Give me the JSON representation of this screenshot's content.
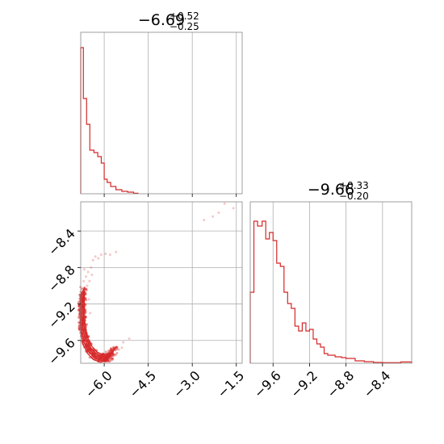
{
  "chart_data": [
    {
      "type": "histogram",
      "panel": "top-left",
      "title": {
        "median": "−6.69",
        "plus": "+0.52",
        "minus": "−0.25"
      },
      "xlim": [
        -6.8,
        -1.3
      ],
      "ylim": [
        0,
        1
      ],
      "xticks": [
        -6.0,
        -4.5,
        -3.0,
        -1.5
      ],
      "show_xtick_labels": false,
      "show_yticks": false,
      "grid": true,
      "color": "#d62728",
      "bins": [
        [
          -6.8,
          0.905
        ],
        [
          -6.71,
          0.59
        ],
        [
          -6.6,
          0.43
        ],
        [
          -6.49,
          0.27
        ],
        [
          -6.35,
          0.255
        ],
        [
          -6.22,
          0.23
        ],
        [
          -6.1,
          0.19
        ],
        [
          -6.0,
          0.09
        ],
        [
          -5.9,
          0.07
        ],
        [
          -5.78,
          0.045
        ],
        [
          -5.6,
          0.025
        ],
        [
          -5.4,
          0.015
        ],
        [
          -5.2,
          0.01
        ],
        [
          -5.0,
          0.003
        ],
        [
          -4.85,
          0.0
        ]
      ],
      "bin_end": -4.85
    },
    {
      "type": "scatter",
      "panel": "bottom-left",
      "xlim": [
        -6.8,
        -1.3
      ],
      "ylim": [
        -9.85,
        -8.08
      ],
      "xticks": [
        -6.0,
        -4.5,
        -3.0,
        -1.5
      ],
      "xtick_labels": [
        "−6.0",
        "−4.5",
        "−3.0",
        "−1.5"
      ],
      "yticks": [
        -8.4,
        -8.8,
        -9.2,
        -9.6
      ],
      "ytick_labels": [
        "−8.4",
        "−8.8",
        "−9.2",
        "−9.6"
      ],
      "grid": true,
      "color": "#d62728",
      "density_arc": [
        [
          -6.74,
          -9.05
        ],
        [
          -6.75,
          -9.25
        ],
        [
          -6.73,
          -9.45
        ],
        [
          -6.65,
          -9.6
        ],
        [
          -6.5,
          -9.7
        ],
        [
          -6.3,
          -9.77
        ],
        [
          -6.05,
          -9.8
        ],
        [
          -5.85,
          -9.78
        ],
        [
          -5.65,
          -9.7
        ]
      ],
      "sparse_points": [
        [
          -6.7,
          -8.95
        ],
        [
          -6.68,
          -8.82
        ],
        [
          -6.62,
          -8.9
        ],
        [
          -6.55,
          -8.85
        ],
        [
          -6.45,
          -8.8
        ],
        [
          -6.38,
          -8.72
        ],
        [
          -6.3,
          -8.68
        ],
        [
          -6.2,
          -8.7
        ],
        [
          -6.1,
          -8.66
        ],
        [
          -5.95,
          -8.65
        ],
        [
          -5.8,
          -8.66
        ],
        [
          -5.6,
          -8.63
        ],
        [
          -6.5,
          -8.95
        ],
        [
          -6.6,
          -9.05
        ],
        [
          -6.42,
          -8.88
        ],
        [
          -5.5,
          -9.7
        ],
        [
          -5.35,
          -9.62
        ],
        [
          -5.15,
          -9.58
        ],
        [
          -5.4,
          -9.68
        ],
        [
          -5.6,
          -9.76
        ],
        [
          -1.6,
          -8.15
        ],
        [
          -2.1,
          -8.2
        ],
        [
          -2.6,
          -8.28
        ],
        [
          -1.9,
          -8.1
        ],
        [
          -2.3,
          -8.24
        ],
        [
          -6.58,
          -9.0
        ],
        [
          -6.52,
          -9.15
        ],
        [
          -6.48,
          -9.3
        ]
      ]
    },
    {
      "type": "histogram",
      "panel": "bottom-right",
      "title": {
        "median": "−9.66",
        "plus": "+0.33",
        "minus": "−0.20"
      },
      "xlim": [
        -9.85,
        -8.08
      ],
      "ylim": [
        0,
        1
      ],
      "xticks": [
        -9.6,
        -9.2,
        -8.8,
        -8.4
      ],
      "xtick_labels": [
        "−9.6",
        "−9.2",
        "−8.8",
        "−8.4"
      ],
      "show_yticks": false,
      "grid": true,
      "color": "#d62728",
      "bins": [
        [
          -9.85,
          0.44
        ],
        [
          -9.81,
          0.88
        ],
        [
          -9.77,
          0.85
        ],
        [
          -9.72,
          0.88
        ],
        [
          -9.68,
          0.77
        ],
        [
          -9.64,
          0.81
        ],
        [
          -9.6,
          0.76
        ],
        [
          -9.56,
          0.62
        ],
        [
          -9.52,
          0.6
        ],
        [
          -9.48,
          0.44
        ],
        [
          -9.44,
          0.37
        ],
        [
          -9.4,
          0.34
        ],
        [
          -9.36,
          0.23
        ],
        [
          -9.32,
          0.2
        ],
        [
          -9.28,
          0.25
        ],
        [
          -9.24,
          0.2
        ],
        [
          -9.2,
          0.21
        ],
        [
          -9.16,
          0.15
        ],
        [
          -9.12,
          0.12
        ],
        [
          -9.08,
          0.1
        ],
        [
          -9.04,
          0.06
        ],
        [
          -9.0,
          0.05
        ],
        [
          -8.92,
          0.04
        ],
        [
          -8.85,
          0.035
        ],
        [
          -8.8,
          0.03
        ],
        [
          -8.7,
          0.015
        ],
        [
          -8.6,
          0.01
        ],
        [
          -8.5,
          0.005
        ],
        [
          -8.4,
          0.004
        ],
        [
          -8.2,
          0.008
        ]
      ],
      "bin_end": -8.08
    }
  ]
}
